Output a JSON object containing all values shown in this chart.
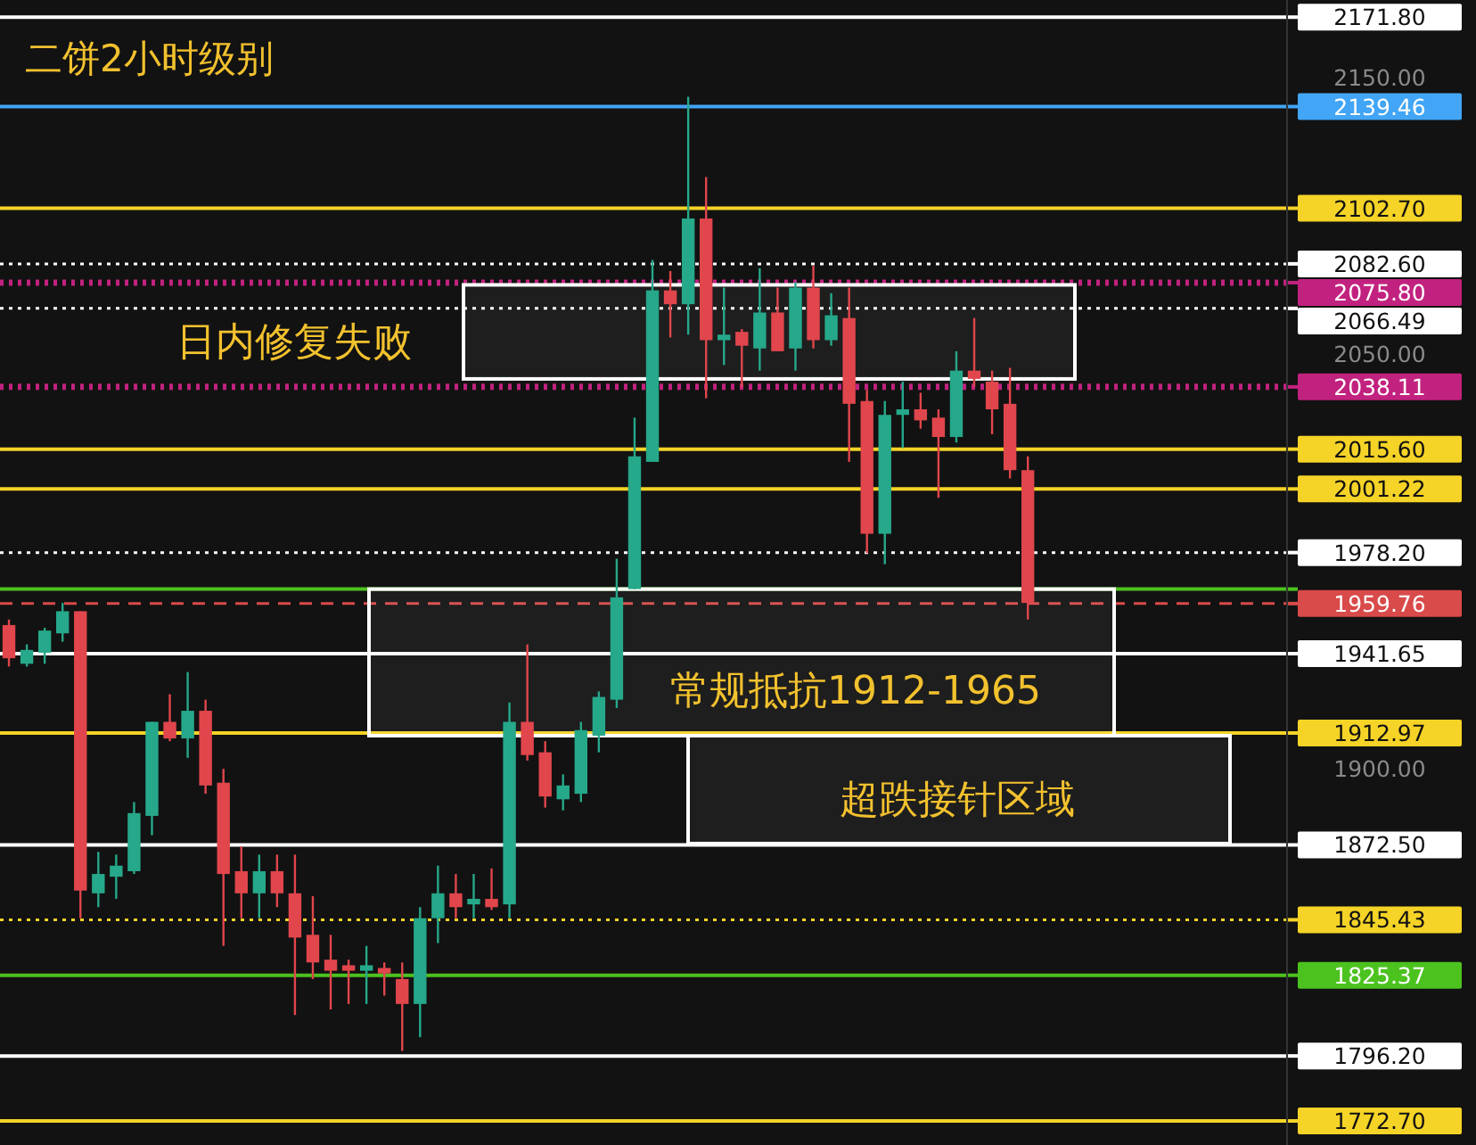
{
  "chart_data": {
    "type": "candlestick",
    "title": "二饼2小时级别",
    "tick_labels": "y",
    "categories": [
      null,
      null,
      null,
      null,
      null,
      null,
      null,
      null,
      null,
      null,
      null,
      null,
      null,
      null,
      null,
      null,
      null,
      null,
      null,
      null,
      null,
      null,
      null,
      null,
      null,
      null,
      null,
      null,
      null,
      null,
      null,
      null,
      null,
      null,
      null,
      null,
      null,
      null,
      null,
      null,
      null,
      null,
      null,
      null,
      null,
      null,
      null,
      null,
      null,
      null,
      null,
      null,
      null,
      null,
      null,
      null,
      null,
      null,
      null,
      null,
      null,
      null,
      null,
      null,
      null,
      null,
      null,
      null,
      null,
      null,
      null,
      null
    ],
    "ylim": [
      1764,
      2178
    ],
    "yticks": [
      {
        "value": 1900,
        "label": "1900.00"
      },
      {
        "value": 2050,
        "label": "2050.00"
      },
      {
        "value": 2150,
        "label": "2150.00"
      }
    ],
    "ohlc": [
      [
        1952,
        1954,
        1937,
        1940
      ],
      [
        1938,
        1945,
        1937,
        1943
      ],
      [
        1942,
        1951,
        1938,
        1950
      ],
      [
        1949,
        1960,
        1946,
        1957
      ],
      [
        1957,
        1957,
        1846,
        1856
      ],
      [
        1855,
        1870,
        1850,
        1862
      ],
      [
        1861,
        1869,
        1853,
        1865
      ],
      [
        1863,
        1888,
        1862,
        1884
      ],
      [
        1883,
        1917,
        1876,
        1917
      ],
      [
        1917,
        1927,
        1910,
        1911
      ],
      [
        1911,
        1935,
        1904,
        1921
      ],
      [
        1921,
        1925,
        1891,
        1894
      ],
      [
        1895,
        1900,
        1836,
        1862
      ],
      [
        1863,
        1872,
        1846,
        1855
      ],
      [
        1855,
        1869,
        1846,
        1863
      ],
      [
        1863,
        1869,
        1850,
        1855
      ],
      [
        1855,
        1869,
        1811,
        1839
      ],
      [
        1840,
        1854,
        1824,
        1830
      ],
      [
        1831,
        1840,
        1813,
        1827
      ],
      [
        1829,
        1831,
        1815,
        1827
      ],
      [
        1827,
        1836,
        1815,
        1829
      ],
      [
        1828,
        1830,
        1818,
        1826
      ],
      [
        1824,
        1830,
        1798,
        1815
      ],
      [
        1815,
        1850,
        1803,
        1846
      ],
      [
        1846,
        1865,
        1837,
        1855
      ],
      [
        1855,
        1862,
        1846,
        1850
      ],
      [
        1851,
        1862,
        1846,
        1853
      ],
      [
        1853,
        1864,
        1849,
        1850
      ],
      [
        1851,
        1924,
        1846,
        1917
      ],
      [
        1917,
        1945,
        1903,
        1905
      ],
      [
        1906,
        1910,
        1886,
        1890
      ],
      [
        1889,
        1898,
        1885,
        1894
      ],
      [
        1891,
        1917,
        1888,
        1914
      ],
      [
        1912,
        1928,
        1906,
        1926
      ],
      [
        1925,
        1976,
        1922,
        1962
      ],
      [
        1965,
        2027,
        1965,
        2013
      ],
      [
        2011,
        2084,
        2011,
        2073
      ],
      [
        2073,
        2080,
        2056,
        2068
      ],
      [
        2068,
        2143,
        2057,
        2099
      ],
      [
        2099,
        2114,
        2034,
        2055
      ],
      [
        2055,
        2074,
        2046,
        2057
      ],
      [
        2058,
        2059,
        2038,
        2053
      ],
      [
        2052,
        2081,
        2044,
        2065
      ],
      [
        2065,
        2074,
        2051,
        2051
      ],
      [
        2052,
        2076,
        2044,
        2074
      ],
      [
        2074,
        2082,
        2052,
        2055
      ],
      [
        2055,
        2072,
        2053,
        2064
      ],
      [
        2063,
        2074,
        2011,
        2032
      ],
      [
        2033,
        2037,
        1978,
        1985
      ],
      [
        1985,
        2033,
        1974,
        2028
      ],
      [
        2028,
        2040,
        2016,
        2030
      ],
      [
        2030,
        2036,
        2023,
        2026
      ],
      [
        2027,
        2030,
        1998,
        2020
      ],
      [
        2020,
        2051,
        2018,
        2044
      ],
      [
        2044,
        2063,
        2038,
        2041
      ],
      [
        2040,
        2044,
        2021,
        2030
      ],
      [
        2032,
        2045,
        2005,
        2008
      ],
      [
        2008,
        2013,
        1954,
        1960
      ],
      null,
      null,
      null,
      null,
      null,
      null,
      null,
      null,
      null,
      null,
      null,
      null,
      null,
      null
    ],
    "ref_lines": [
      {
        "axis": "y",
        "value": 2171.8,
        "label": "2171.80",
        "color": "#ffffff",
        "line_style": "solid"
      },
      {
        "axis": "y",
        "value": 2139.46,
        "label": "2139.46",
        "color": "#42a5f5",
        "line_style": "solid"
      },
      {
        "axis": "y",
        "value": 2102.7,
        "label": "2102.70",
        "color": "#f5d327",
        "line_style": "solid"
      },
      {
        "axis": "y",
        "value": 2082.6,
        "label": "2082.60",
        "color": "#ffffff",
        "line_style": "dotted"
      },
      {
        "axis": "y",
        "value": 2075.8,
        "label": "2075.80",
        "color": "#c2227f",
        "line_style": "dotted"
      },
      {
        "axis": "y",
        "value": 2066.49,
        "label": "2066.49",
        "color": "#ffffff",
        "line_style": "dotted"
      },
      {
        "axis": "y",
        "value": 2038.11,
        "label": "2038.11",
        "color": "#c2227f",
        "line_style": "dotted"
      },
      {
        "axis": "y",
        "value": 2015.6,
        "label": "2015.60",
        "color": "#f5d327",
        "line_style": "solid"
      },
      {
        "axis": "y",
        "value": 2001.22,
        "label": "2001.22",
        "color": "#f5d327",
        "line_style": "solid"
      },
      {
        "axis": "y",
        "value": 1978.2,
        "label": "1978.20",
        "color": "#ffffff",
        "line_style": "dotted"
      },
      {
        "axis": "y",
        "value": 1965,
        "color": "#4cc21f",
        "line_style": "solid"
      },
      {
        "axis": "y",
        "value": 1959.76,
        "label": "1959.76",
        "color": "#d94a4a",
        "line_style": "dashed"
      },
      {
        "axis": "y",
        "value": 1941.65,
        "label": "1941.65",
        "color": "#ffffff",
        "line_style": "solid"
      },
      {
        "axis": "y",
        "value": 1912.97,
        "label": "1912.97",
        "color": "#f5d327",
        "line_style": "solid"
      },
      {
        "axis": "y",
        "value": 1872.5,
        "label": "1872.50",
        "color": "#ffffff",
        "line_style": "solid"
      },
      {
        "axis": "y",
        "value": 1845.43,
        "label": "1845.43",
        "color": "#f5d327",
        "line_style": "dotted"
      },
      {
        "axis": "y",
        "value": 1825.37,
        "label": "1825.37",
        "color": "#4cc21f",
        "line_style": "solid"
      },
      {
        "axis": "y",
        "value": 1796.2,
        "label": "1796.20",
        "color": "#ffffff",
        "line_style": "solid"
      },
      {
        "axis": "y",
        "value": 1772.7,
        "label": "1772.70",
        "color": "#f5d327",
        "line_style": "solid"
      }
    ],
    "bands": [
      {
        "axis": "y",
        "from": 2041,
        "to": 2075,
        "label": "日内修复失败",
        "color": "#ffffff"
      },
      {
        "axis": "y",
        "from": 1912,
        "to": 1965,
        "label": "常规抵抗1912-1965",
        "color": "#ffffff"
      },
      {
        "axis": "y",
        "from": 1873,
        "to": 1912,
        "label": "超跌接针区域",
        "color": "#ffffff"
      }
    ]
  }
}
